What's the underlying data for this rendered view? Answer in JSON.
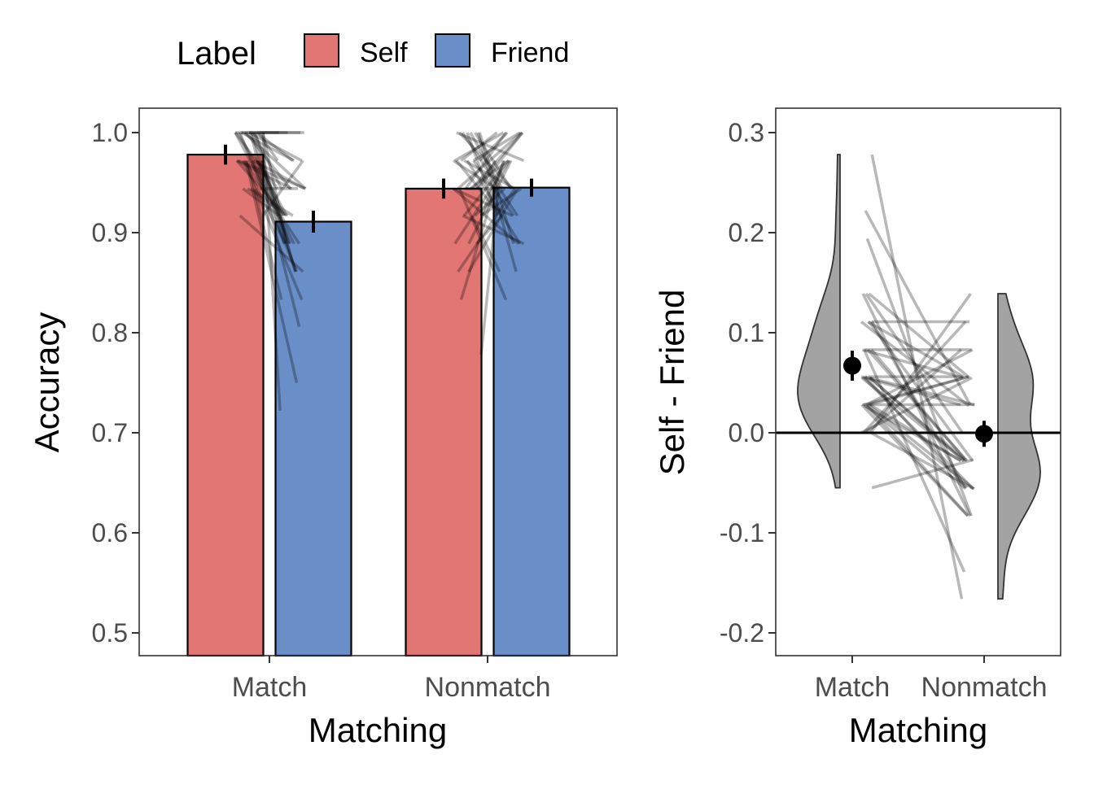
{
  "legend": {
    "title": "Label",
    "items": [
      {
        "label": "Self",
        "color": "#E27673"
      },
      {
        "label": "Friend",
        "color": "#6A8FC8"
      }
    ]
  },
  "chart_data": [
    {
      "type": "bar",
      "title": "",
      "xlabel": "Matching",
      "ylabel": "Accuracy",
      "categories": [
        "Match",
        "Nonmatch"
      ],
      "ylim": [
        0.475,
        1.025
      ],
      "yticks": [
        0.5,
        0.6,
        0.7,
        0.8,
        0.9,
        1.0
      ],
      "ytick_labels": [
        "0.5",
        "0.6",
        "0.7",
        "0.8",
        "0.9",
        "1.0"
      ],
      "series": [
        {
          "name": "Self",
          "values": [
            0.978,
            0.944
          ],
          "se": [
            0.01,
            0.01
          ]
        },
        {
          "name": "Friend",
          "values": [
            0.911,
            0.945
          ],
          "se": [
            0.011,
            0.009
          ]
        }
      ],
      "participants": {
        "self_match": [
          1,
          1,
          0.972,
          1,
          0.972,
          1,
          0.944,
          1,
          0.972,
          1,
          1,
          0.944,
          0.972,
          1,
          0.972,
          1,
          0.917,
          1,
          0.972,
          1,
          1,
          0.972,
          0.944,
          1,
          0.972,
          1,
          0.972,
          1,
          0.944,
          1,
          0.972,
          1,
          0.972,
          0.944,
          1,
          1,
          0.972,
          0.972,
          1,
          0.917
        ],
        "friend_match": [
          0.944,
          0.889,
          0.861,
          1,
          0.917,
          0.972,
          0.833,
          0.944,
          0.889,
          0.806,
          1,
          0.917,
          0.75,
          0.944,
          0.889,
          0.972,
          0.861,
          0.917,
          0.944,
          1,
          0.722,
          0.889,
          0.944,
          0.972,
          0.917,
          0.861,
          0.944,
          0.889,
          0.917,
          0.972,
          0.833,
          0.944,
          0.889,
          0.917,
          1,
          0.861,
          0.944,
          0.917,
          0.889,
          0.972
        ],
        "self_nonmatch": [
          0.972,
          0.917,
          1,
          0.944,
          0.889,
          1,
          0.972,
          0.917,
          0.944,
          0.861,
          1,
          0.944,
          0.972,
          0.917,
          0.833,
          1,
          0.944,
          0.972,
          0.889,
          0.944,
          0.778,
          0.972,
          1,
          0.944,
          0.917,
          0.972,
          0.944,
          1,
          0.889,
          0.972,
          0.944,
          0.917,
          1,
          0.972,
          0.944,
          0.861,
          1,
          0.972,
          0.944,
          0.917
        ],
        "friend_nonmatch": [
          0.944,
          0.972,
          0.889,
          1,
          0.917,
          0.944,
          1,
          0.861,
          0.972,
          0.944,
          0.917,
          1,
          0.944,
          0.889,
          0.972,
          0.944,
          1,
          0.917,
          0.972,
          0.889,
          0.944,
          1,
          0.861,
          0.972,
          0.944,
          0.917,
          1,
          0.944,
          0.972,
          0.889,
          0.944,
          0.972,
          0.917,
          1,
          0.833,
          0.944,
          0.972,
          1,
          0.917,
          0.944
        ]
      }
    },
    {
      "type": "raincloud",
      "xlabel": "Matching",
      "ylabel": "Self - Friend",
      "categories": [
        "Match",
        "Nonmatch"
      ],
      "ylim": [
        -0.225,
        0.325
      ],
      "yticks": [
        -0.2,
        -0.1,
        0.0,
        0.1,
        0.2,
        0.3
      ],
      "ytick_labels": [
        "-0.2",
        "-0.1",
        "0.0",
        "0.1",
        "0.2",
        "0.3"
      ],
      "means": [
        0.067,
        -0.001
      ],
      "se": [
        0.015,
        0.013
      ],
      "reference_line": 0,
      "violin_color": "#A3A3A3"
    }
  ]
}
